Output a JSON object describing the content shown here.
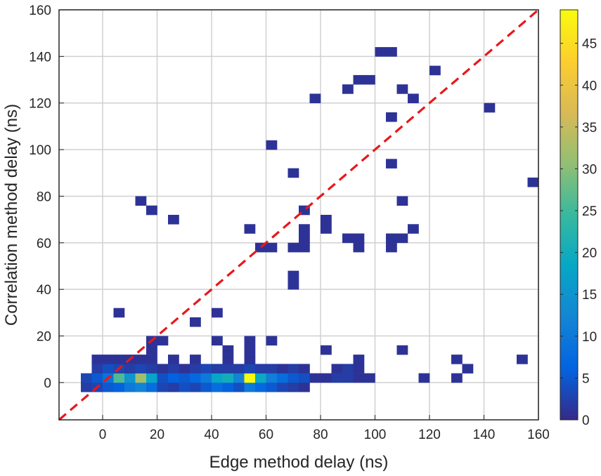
{
  "chart_data": {
    "type": "heatmap",
    "title": "",
    "xlabel": "Edge method delay (ns)",
    "ylabel": "Correlation method delay (ns)",
    "xlim": [
      -16,
      160
    ],
    "ylim": [
      -16,
      160
    ],
    "xticks": [
      0,
      20,
      40,
      60,
      80,
      100,
      120,
      140,
      160
    ],
    "yticks": [
      0,
      20,
      40,
      60,
      80,
      100,
      120,
      140,
      160
    ],
    "bin_size": 4,
    "grid": true,
    "colormap": "parula",
    "colorbar": {
      "range": [
        0,
        49
      ],
      "ticks": [
        0,
        5,
        10,
        15,
        20,
        25,
        30,
        35,
        40,
        45
      ]
    },
    "reference_line": {
      "style": "dashed",
      "color": "#e8171b",
      "x": [
        -16,
        160
      ],
      "y": [
        -16,
        160
      ]
    },
    "colors": {
      "parula": [
        "#352a87",
        "#0363e1",
        "#1485d4",
        "#06a7c6",
        "#38b99e",
        "#92bf73",
        "#d9ba56",
        "#fcce2e",
        "#f9fb0e"
      ],
      "grid": "#d0d0d0",
      "axis": "#262626",
      "reference_line": "#e8171b"
    },
    "cells": [
      {
        "x": -6,
        "y": -2,
        "v": 2
      },
      {
        "x": -2,
        "y": -2,
        "v": 3
      },
      {
        "x": 2,
        "y": -2,
        "v": 5
      },
      {
        "x": 6,
        "y": -2,
        "v": 6
      },
      {
        "x": 10,
        "y": -2,
        "v": 10
      },
      {
        "x": 14,
        "y": -2,
        "v": 12
      },
      {
        "x": 18,
        "y": -2,
        "v": 8
      },
      {
        "x": 22,
        "y": -2,
        "v": 3
      },
      {
        "x": 26,
        "y": -2,
        "v": 2
      },
      {
        "x": 30,
        "y": -2,
        "v": 4
      },
      {
        "x": 34,
        "y": -2,
        "v": 3
      },
      {
        "x": 38,
        "y": -2,
        "v": 5
      },
      {
        "x": 42,
        "y": -2,
        "v": 8
      },
      {
        "x": 46,
        "y": -2,
        "v": 6
      },
      {
        "x": 50,
        "y": -2,
        "v": 4
      },
      {
        "x": 54,
        "y": -2,
        "v": 10
      },
      {
        "x": 58,
        "y": -2,
        "v": 7
      },
      {
        "x": 62,
        "y": -2,
        "v": 5
      },
      {
        "x": 66,
        "y": -2,
        "v": 3
      },
      {
        "x": 70,
        "y": -2,
        "v": 2
      },
      {
        "x": 74,
        "y": -2,
        "v": 1
      },
      {
        "x": -6,
        "y": 2,
        "v": 3
      },
      {
        "x": -2,
        "y": 2,
        "v": 5
      },
      {
        "x": 2,
        "y": 2,
        "v": 9
      },
      {
        "x": 6,
        "y": 2,
        "v": 26
      },
      {
        "x": 10,
        "y": 2,
        "v": 15
      },
      {
        "x": 14,
        "y": 2,
        "v": 32
      },
      {
        "x": 18,
        "y": 2,
        "v": 18
      },
      {
        "x": 22,
        "y": 2,
        "v": 4
      },
      {
        "x": 26,
        "y": 2,
        "v": 6
      },
      {
        "x": 30,
        "y": 2,
        "v": 5
      },
      {
        "x": 34,
        "y": 2,
        "v": 7
      },
      {
        "x": 38,
        "y": 2,
        "v": 10
      },
      {
        "x": 42,
        "y": 2,
        "v": 18
      },
      {
        "x": 46,
        "y": 2,
        "v": 20
      },
      {
        "x": 50,
        "y": 2,
        "v": 12
      },
      {
        "x": 54,
        "y": 2,
        "v": 49
      },
      {
        "x": 58,
        "y": 2,
        "v": 19
      },
      {
        "x": 62,
        "y": 2,
        "v": 11
      },
      {
        "x": 66,
        "y": 2,
        "v": 8
      },
      {
        "x": 70,
        "y": 2,
        "v": 5
      },
      {
        "x": 74,
        "y": 2,
        "v": 4
      },
      {
        "x": 78,
        "y": 2,
        "v": 1
      },
      {
        "x": 82,
        "y": 2,
        "v": 1
      },
      {
        "x": 86,
        "y": 2,
        "v": 2
      },
      {
        "x": 90,
        "y": 2,
        "v": 2
      },
      {
        "x": 94,
        "y": 2,
        "v": 1
      },
      {
        "x": 98,
        "y": 2,
        "v": 1
      },
      {
        "x": 118,
        "y": 2,
        "v": 1
      },
      {
        "x": 130,
        "y": 2,
        "v": 1
      },
      {
        "x": -2,
        "y": 6,
        "v": 2
      },
      {
        "x": 2,
        "y": 6,
        "v": 4
      },
      {
        "x": 6,
        "y": 6,
        "v": 3
      },
      {
        "x": 10,
        "y": 6,
        "v": 2
      },
      {
        "x": 14,
        "y": 6,
        "v": 3
      },
      {
        "x": 18,
        "y": 6,
        "v": 2
      },
      {
        "x": 22,
        "y": 6,
        "v": 1
      },
      {
        "x": 26,
        "y": 6,
        "v": 2
      },
      {
        "x": 30,
        "y": 6,
        "v": 1
      },
      {
        "x": 34,
        "y": 6,
        "v": 2
      },
      {
        "x": 38,
        "y": 6,
        "v": 3
      },
      {
        "x": 42,
        "y": 6,
        "v": 2
      },
      {
        "x": 46,
        "y": 6,
        "v": 2
      },
      {
        "x": 50,
        "y": 6,
        "v": 2
      },
      {
        "x": 54,
        "y": 6,
        "v": 3
      },
      {
        "x": 58,
        "y": 6,
        "v": 2
      },
      {
        "x": 62,
        "y": 6,
        "v": 2
      },
      {
        "x": 66,
        "y": 6,
        "v": 1
      },
      {
        "x": 70,
        "y": 6,
        "v": 2
      },
      {
        "x": 74,
        "y": 6,
        "v": 1
      },
      {
        "x": 86,
        "y": 6,
        "v": 1
      },
      {
        "x": 90,
        "y": 6,
        "v": 2
      },
      {
        "x": 94,
        "y": 6,
        "v": 1
      },
      {
        "x": 134,
        "y": 6,
        "v": 1
      },
      {
        "x": -2,
        "y": 10,
        "v": 1
      },
      {
        "x": 2,
        "y": 10,
        "v": 1
      },
      {
        "x": 6,
        "y": 10,
        "v": 1
      },
      {
        "x": 10,
        "y": 10,
        "v": 1
      },
      {
        "x": 14,
        "y": 10,
        "v": 1
      },
      {
        "x": 18,
        "y": 10,
        "v": 1
      },
      {
        "x": 26,
        "y": 10,
        "v": 1
      },
      {
        "x": 34,
        "y": 10,
        "v": 1
      },
      {
        "x": 46,
        "y": 10,
        "v": 1
      },
      {
        "x": 54,
        "y": 10,
        "v": 1
      },
      {
        "x": 94,
        "y": 10,
        "v": 1
      },
      {
        "x": 130,
        "y": 10,
        "v": 1
      },
      {
        "x": 154,
        "y": 10,
        "v": 1
      },
      {
        "x": 18,
        "y": 14,
        "v": 1
      },
      {
        "x": 46,
        "y": 14,
        "v": 1
      },
      {
        "x": 54,
        "y": 14,
        "v": 1
      },
      {
        "x": 82,
        "y": 14,
        "v": 1
      },
      {
        "x": 110,
        "y": 14,
        "v": 1
      },
      {
        "x": 18,
        "y": 18,
        "v": 1
      },
      {
        "x": 22,
        "y": 18,
        "v": 1
      },
      {
        "x": 42,
        "y": 18,
        "v": 1
      },
      {
        "x": 54,
        "y": 18,
        "v": 1
      },
      {
        "x": 62,
        "y": 18,
        "v": 1
      },
      {
        "x": 6,
        "y": 30,
        "v": 1
      },
      {
        "x": 34,
        "y": 26,
        "v": 1
      },
      {
        "x": 42,
        "y": 30,
        "v": 1
      },
      {
        "x": 70,
        "y": 42,
        "v": 1
      },
      {
        "x": 70,
        "y": 46,
        "v": 1
      },
      {
        "x": 58,
        "y": 58,
        "v": 1
      },
      {
        "x": 62,
        "y": 58,
        "v": 1
      },
      {
        "x": 70,
        "y": 58,
        "v": 1
      },
      {
        "x": 74,
        "y": 58,
        "v": 1
      },
      {
        "x": 74,
        "y": 62,
        "v": 1
      },
      {
        "x": 74,
        "y": 66,
        "v": 1
      },
      {
        "x": 54,
        "y": 66,
        "v": 1
      },
      {
        "x": 82,
        "y": 66,
        "v": 1
      },
      {
        "x": 82,
        "y": 70,
        "v": 1
      },
      {
        "x": 90,
        "y": 62,
        "v": 1
      },
      {
        "x": 94,
        "y": 62,
        "v": 1
      },
      {
        "x": 94,
        "y": 58,
        "v": 1
      },
      {
        "x": 106,
        "y": 58,
        "v": 1
      },
      {
        "x": 106,
        "y": 62,
        "v": 1
      },
      {
        "x": 110,
        "y": 62,
        "v": 1
      },
      {
        "x": 114,
        "y": 66,
        "v": 1
      },
      {
        "x": 14,
        "y": 78,
        "v": 1
      },
      {
        "x": 18,
        "y": 74,
        "v": 1
      },
      {
        "x": 26,
        "y": 70,
        "v": 1
      },
      {
        "x": 74,
        "y": 74,
        "v": 1
      },
      {
        "x": 110,
        "y": 78,
        "v": 1
      },
      {
        "x": 158,
        "y": 86,
        "v": 1
      },
      {
        "x": 70,
        "y": 90,
        "v": 1
      },
      {
        "x": 106,
        "y": 94,
        "v": 1
      },
      {
        "x": 62,
        "y": 102,
        "v": 1
      },
      {
        "x": 106,
        "y": 114,
        "v": 1
      },
      {
        "x": 78,
        "y": 122,
        "v": 1
      },
      {
        "x": 114,
        "y": 122,
        "v": 1
      },
      {
        "x": 142,
        "y": 118,
        "v": 1
      },
      {
        "x": 90,
        "y": 126,
        "v": 1
      },
      {
        "x": 110,
        "y": 126,
        "v": 1
      },
      {
        "x": 94,
        "y": 130,
        "v": 1
      },
      {
        "x": 98,
        "y": 130,
        "v": 1
      },
      {
        "x": 122,
        "y": 134,
        "v": 1
      },
      {
        "x": 102,
        "y": 142,
        "v": 1
      },
      {
        "x": 106,
        "y": 142,
        "v": 1
      }
    ]
  }
}
